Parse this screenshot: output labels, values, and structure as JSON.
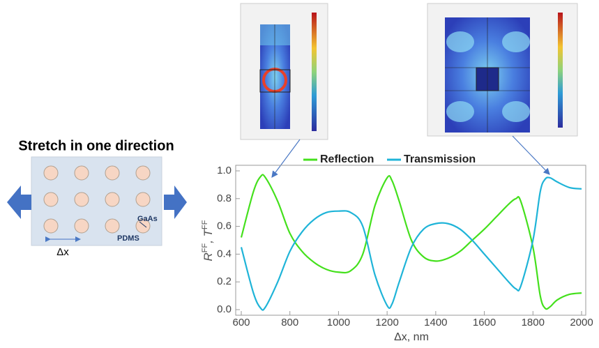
{
  "diagram": {
    "title": "Stretch in one direction",
    "material_particle": "GaAs",
    "material_matrix": "PDMS",
    "spacing": "Δx"
  },
  "chart_data": {
    "type": "line",
    "xlabel": "Δx, nm",
    "ylabel": [
      "R",
      "FF",
      ", T",
      "FF"
    ],
    "x": [
      600,
      650,
      680,
      700,
      750,
      800,
      850,
      900,
      950,
      1000,
      1050,
      1100,
      1150,
      1200,
      1220,
      1250,
      1300,
      1350,
      1400,
      1450,
      1500,
      1550,
      1600,
      1650,
      1700,
      1730,
      1750,
      1800,
      1830,
      1850,
      1870,
      1900,
      1950,
      2000
    ],
    "series": [
      {
        "name": "Reflection",
        "color": "#44e01c",
        "values": [
          0.52,
          0.85,
          0.96,
          0.95,
          0.78,
          0.55,
          0.42,
          0.34,
          0.29,
          0.27,
          0.28,
          0.4,
          0.75,
          0.95,
          0.93,
          0.78,
          0.5,
          0.38,
          0.35,
          0.37,
          0.42,
          0.5,
          0.58,
          0.67,
          0.76,
          0.8,
          0.78,
          0.45,
          0.1,
          0.01,
          0.02,
          0.07,
          0.11,
          0.12
        ]
      },
      {
        "name": "Transmission",
        "color": "#1fb4d8",
        "values": [
          0.45,
          0.12,
          0.01,
          0.02,
          0.2,
          0.42,
          0.56,
          0.65,
          0.7,
          0.71,
          0.7,
          0.6,
          0.25,
          0.03,
          0.04,
          0.2,
          0.45,
          0.58,
          0.62,
          0.62,
          0.58,
          0.5,
          0.4,
          0.3,
          0.2,
          0.15,
          0.17,
          0.5,
          0.85,
          0.94,
          0.95,
          0.92,
          0.88,
          0.87
        ]
      }
    ],
    "xlim": [
      600,
      2000
    ],
    "xticks": [
      600,
      800,
      1000,
      1200,
      1400,
      1600,
      1800,
      2000
    ],
    "ylim": [
      0,
      1
    ],
    "yticks": [
      {
        "value": 0,
        "label": "0.0"
      },
      0.2,
      0.4,
      0.6,
      0.8,
      {
        "value": 1,
        "label": "1.0"
      }
    ]
  }
}
